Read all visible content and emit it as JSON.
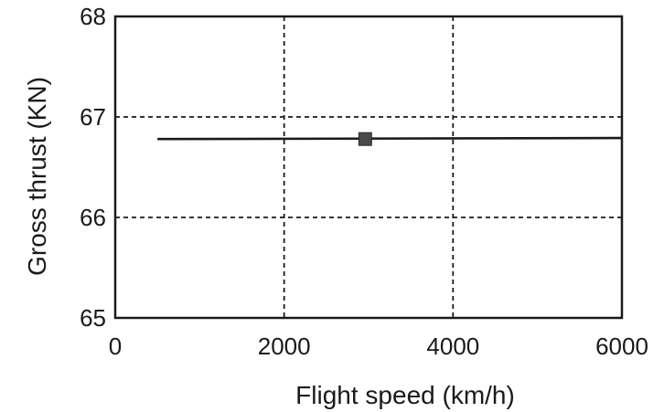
{
  "chart_data": {
    "type": "line",
    "xlabel": "Flight speed (km/h)",
    "ylabel": "Gross thrust (KN)",
    "xlim": [
      0,
      6000
    ],
    "ylim": [
      65,
      68
    ],
    "x_ticks": [
      0,
      2000,
      4000,
      6000
    ],
    "y_ticks": [
      65,
      66,
      67,
      68
    ],
    "x_tick_labels": [
      "0",
      "2000",
      "4000",
      "6000"
    ],
    "y_tick_labels": [
      "65",
      "66",
      "67",
      "68"
    ],
    "grid": true,
    "series": [
      {
        "x": [
          500,
          6000
        ],
        "y": [
          66.78,
          66.79
        ],
        "style": "solid-line"
      }
    ],
    "markers": [
      {
        "x": 2960,
        "y": 66.78,
        "shape": "square"
      }
    ]
  }
}
